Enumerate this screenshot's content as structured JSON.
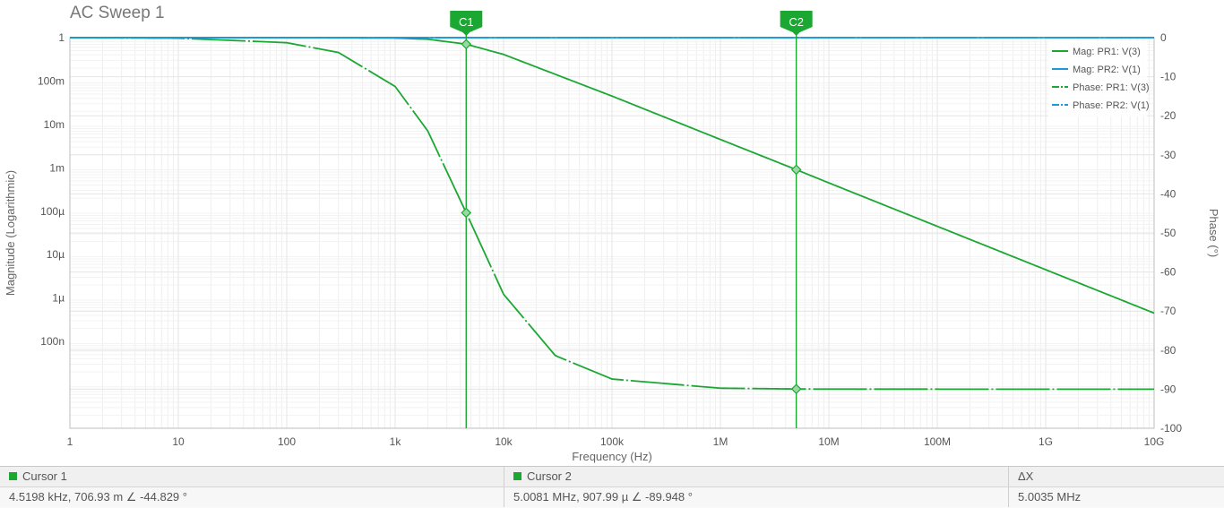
{
  "window": {
    "title": "AC Sweep 1"
  },
  "colors": {
    "magnitude": "#1aa832",
    "reference": "#1a9ad6",
    "grid": "#e6e6e6",
    "cursor": "#1aa832"
  },
  "chart_data": {
    "type": "line",
    "title": "AC Sweep 1",
    "xlabel": "Frequency (Hz)",
    "ylabel_left": "Magnitude (Logarithmic)",
    "ylabel_right": "Phase (°)",
    "x_scale": "log",
    "y_left_scale": "log",
    "xlim": [
      1,
      10000000000
    ],
    "ylim_left": [
      1e-09,
      1
    ],
    "ylim_right": [
      -100,
      0
    ],
    "grid": true,
    "legend_position": "top-right",
    "x_ticks": [
      {
        "v": 1,
        "label": "1"
      },
      {
        "v": 10,
        "label": "10"
      },
      {
        "v": 100,
        "label": "100"
      },
      {
        "v": 1000,
        "label": "1k"
      },
      {
        "v": 10000,
        "label": "10k"
      },
      {
        "v": 100000,
        "label": "100k"
      },
      {
        "v": 1000000,
        "label": "1M"
      },
      {
        "v": 10000000,
        "label": "10M"
      },
      {
        "v": 100000000,
        "label": "100M"
      },
      {
        "v": 1000000000,
        "label": "1G"
      },
      {
        "v": 10000000000,
        "label": "10G"
      }
    ],
    "y_left_ticks": [
      {
        "v": 1,
        "label": "1"
      },
      {
        "v": 0.1,
        "label": "100m"
      },
      {
        "v": 0.01,
        "label": "10m"
      },
      {
        "v": 0.001,
        "label": "1m"
      },
      {
        "v": 0.0001,
        "label": "100µ"
      },
      {
        "v": 1e-05,
        "label": "10µ"
      },
      {
        "v": 1e-06,
        "label": "1µ"
      },
      {
        "v": 1e-07,
        "label": "100n"
      }
    ],
    "y_right_ticks": [
      {
        "v": 0,
        "label": "0"
      },
      {
        "v": -10,
        "label": "-10"
      },
      {
        "v": -20,
        "label": "-20"
      },
      {
        "v": -30,
        "label": "-30"
      },
      {
        "v": -40,
        "label": "-40"
      },
      {
        "v": -50,
        "label": "-50"
      },
      {
        "v": -60,
        "label": "-60"
      },
      {
        "v": -70,
        "label": "-70"
      },
      {
        "v": -80,
        "label": "-80"
      },
      {
        "v": -90,
        "label": "-90"
      },
      {
        "v": -100,
        "label": "-100"
      }
    ],
    "series": [
      {
        "name": "Mag: PR1: V(3)",
        "axis": "left",
        "style": "solid",
        "color": "#1aa832",
        "x": [
          1,
          10,
          100,
          1000,
          2000,
          4519.8,
          10000,
          100000,
          1000000,
          5008100,
          10000000,
          100000000,
          1000000000,
          10000000000
        ],
        "y": [
          1,
          1,
          1,
          0.98,
          0.92,
          0.70693,
          0.41,
          0.045,
          0.0045,
          0.00090799,
          0.00045,
          4.5e-05,
          4.5e-06,
          4.5e-07
        ]
      },
      {
        "name": "Mag: PR2: V(1)",
        "axis": "left",
        "style": "solid",
        "color": "#1a9ad6",
        "x": [
          1,
          10000000000
        ],
        "y": [
          1,
          1
        ]
      },
      {
        "name": "Phase: PR1: V(3)",
        "axis": "right",
        "style": "dashdot",
        "color": "#1aa832",
        "x": [
          1,
          10,
          100,
          300,
          1000,
          2000,
          4519.8,
          10000,
          30000,
          100000,
          1000000,
          5008100,
          10000000,
          1000000000,
          10000000000
        ],
        "y": [
          -0.01,
          -0.13,
          -1.3,
          -3.8,
          -12.5,
          -23.9,
          -44.829,
          -65.7,
          -81.4,
          -87.4,
          -89.74,
          -89.948,
          -89.97,
          -90,
          -90
        ]
      },
      {
        "name": "Phase: PR2: V(1)",
        "axis": "right",
        "style": "dashdot",
        "color": "#1a9ad6",
        "x": [
          1,
          10000000000
        ],
        "y": [
          0,
          0
        ]
      }
    ],
    "cursors": [
      {
        "label": "C1",
        "x": 4519.8,
        "markers": [
          {
            "axis": "left",
            "y": 0.70693
          },
          {
            "axis": "right",
            "y": -44.829
          }
        ]
      },
      {
        "label": "C2",
        "x": 5008100,
        "markers": [
          {
            "axis": "left",
            "y": 0.00090799
          },
          {
            "axis": "right",
            "y": -89.948
          }
        ]
      }
    ]
  },
  "cursor_panel": {
    "cursor1": {
      "label": "Cursor 1",
      "value": "4.5198 kHz, 706.93 m  ∠ -44.829 °"
    },
    "cursor2": {
      "label": "Cursor 2",
      "value": "5.0081 MHz, 907.99 µ  ∠ -89.948 °"
    },
    "delta": {
      "label": "ΔX",
      "value": "5.0035 MHz"
    }
  }
}
